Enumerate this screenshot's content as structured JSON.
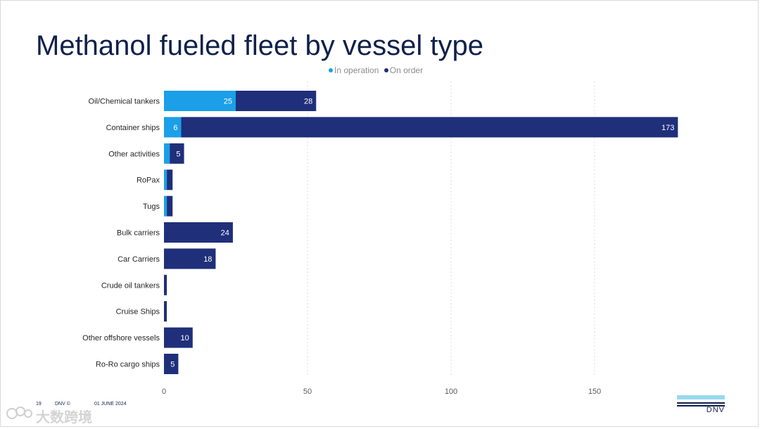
{
  "title": "Methanol fueled fleet by vessel type",
  "colors": {
    "in_operation": "#1a9fe8",
    "on_order": "#1f2f7a",
    "title": "#0f204b"
  },
  "chart_data": {
    "type": "bar",
    "orientation": "horizontal",
    "stacked": true,
    "title": "Methanol fueled fleet by vessel type",
    "categories": [
      "Oil/Chemical tankers",
      "Container ships",
      "Other activities",
      "RoPax",
      "Tugs",
      "Bulk carriers",
      "Car Carriers",
      "Crude oil tankers",
      "Cruise Ships",
      "Other offshore vessels",
      "Ro-Ro cargo ships"
    ],
    "series": [
      {
        "name": "In operation",
        "values": [
          25,
          6,
          2,
          1,
          1,
          0,
          0,
          0,
          0,
          0,
          0
        ]
      },
      {
        "name": "On order",
        "values": [
          28,
          173,
          5,
          2,
          2,
          24,
          18,
          1,
          1,
          10,
          5
        ]
      }
    ],
    "data_labels": {
      "In operation": [
        "25",
        "6",
        "",
        "",
        "",
        "",
        "",
        "",
        "",
        "",
        ""
      ],
      "On order": [
        "28",
        "173",
        "5",
        "",
        "",
        "24",
        "18",
        "",
        "",
        "10",
        "5"
      ]
    },
    "x_ticks": [
      0,
      50,
      100,
      150
    ],
    "xlim": [
      0,
      180
    ],
    "xlabel": "",
    "ylabel": "",
    "grid": "vertical dotted",
    "legend_position": "top"
  },
  "footer": {
    "page": "19",
    "brand": "DNV ©",
    "date": "01 JUNE 2024"
  },
  "logo": {
    "text": "DNV"
  },
  "watermark": {
    "text": "大数跨境"
  }
}
